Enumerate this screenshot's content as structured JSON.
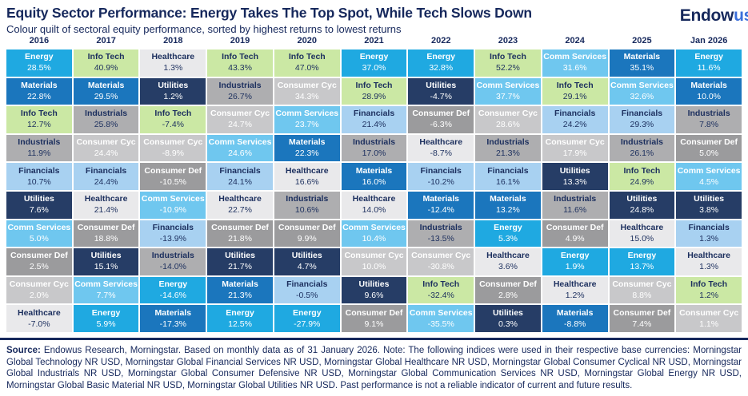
{
  "header": {
    "title": "Equity Sector Performance: Energy Takes The Top Spot, While Tech Slows Down",
    "subtitle": "Colour quilt of sectoral equity performance, sorted by highest returns to lowest returns",
    "logo_part1": "Endow",
    "logo_part2": "us"
  },
  "colors": {
    "navy_text": "#16285C",
    "logo_blue": "#3B6FDB",
    "sectors": {
      "Energy": {
        "bg": "#1FA9E1",
        "text": "#FFFFFF"
      },
      "Materials": {
        "bg": "#1B76BD",
        "text": "#FFFFFF"
      },
      "Info Tech": {
        "bg": "#CBE8A4",
        "text": "#1C2F5E"
      },
      "Industrials": {
        "bg": "#AEAEB0",
        "text": "#1C2F5E"
      },
      "Financials": {
        "bg": "#A8D1F1",
        "text": "#1C2F5E"
      },
      "Utilities": {
        "bg": "#263D66",
        "text": "#FFFFFF"
      },
      "Comm Services": {
        "bg": "#6FC7EF",
        "text": "#FFFFFF"
      },
      "Consumer Def": {
        "bg": "#9B9B9D",
        "text": "#FFFFFF"
      },
      "Consumer Cyc": {
        "bg": "#C8C8CA",
        "text": "#FFFFFF"
      },
      "Healthcare": {
        "bg": "#E9E9EB",
        "text": "#1C2F5E"
      }
    }
  },
  "chart_data": {
    "type": "table",
    "subtype": "colour-quilt-heatmap",
    "title": "Equity Sector Performance: Energy Takes The Top Spot, While Tech Slows Down",
    "columns": [
      "2016",
      "2017",
      "2018",
      "2019",
      "2020",
      "2021",
      "2022",
      "2023",
      "2024",
      "2025",
      "Jan 2026"
    ],
    "columns_data": [
      {
        "label": "2016",
        "ranking": [
          {
            "sector": "Energy",
            "value": "28.5%"
          },
          {
            "sector": "Materials",
            "value": "22.8%"
          },
          {
            "sector": "Info Tech",
            "value": "12.7%"
          },
          {
            "sector": "Industrials",
            "value": "11.9%"
          },
          {
            "sector": "Financials",
            "value": "10.7%"
          },
          {
            "sector": "Utilities",
            "value": "7.6%"
          },
          {
            "sector": "Comm Services",
            "value": "5.0%"
          },
          {
            "sector": "Consumer Def",
            "value": "2.5%"
          },
          {
            "sector": "Consumer Cyc",
            "value": "2.0%"
          },
          {
            "sector": "Healthcare",
            "value": "-7.0%"
          }
        ]
      },
      {
        "label": "2017",
        "ranking": [
          {
            "sector": "Info Tech",
            "value": "40.9%"
          },
          {
            "sector": "Materials",
            "value": "29.5%"
          },
          {
            "sector": "Industrials",
            "value": "25.8%"
          },
          {
            "sector": "Consumer Cyc",
            "value": "24.4%"
          },
          {
            "sector": "Financials",
            "value": "24.4%"
          },
          {
            "sector": "Healthcare",
            "value": "21.4%"
          },
          {
            "sector": "Consumer Def",
            "value": "18.8%"
          },
          {
            "sector": "Utilities",
            "value": "15.1%"
          },
          {
            "sector": "Comm Services",
            "value": "7.7%"
          },
          {
            "sector": "Energy",
            "value": "5.9%"
          }
        ]
      },
      {
        "label": "2018",
        "ranking": [
          {
            "sector": "Healthcare",
            "value": "1.3%"
          },
          {
            "sector": "Utilities",
            "value": "1.2%"
          },
          {
            "sector": "Info Tech",
            "value": "-7.4%"
          },
          {
            "sector": "Consumer Cyc",
            "value": "-8.9%"
          },
          {
            "sector": "Consumer Def",
            "value": "-10.5%"
          },
          {
            "sector": "Comm Services",
            "value": "-10.9%"
          },
          {
            "sector": "Financials",
            "value": "-13.9%"
          },
          {
            "sector": "Industrials",
            "value": "-14.0%"
          },
          {
            "sector": "Energy",
            "value": "-14.6%"
          },
          {
            "sector": "Materials",
            "value": "-17.3%"
          }
        ]
      },
      {
        "label": "2019",
        "ranking": [
          {
            "sector": "Info Tech",
            "value": "43.3%"
          },
          {
            "sector": "Industrials",
            "value": "26.7%"
          },
          {
            "sector": "Consumer Cyc",
            "value": "24.7%"
          },
          {
            "sector": "Comm Services",
            "value": "24.6%"
          },
          {
            "sector": "Financials",
            "value": "24.1%"
          },
          {
            "sector": "Healthcare",
            "value": "22.7%"
          },
          {
            "sector": "Consumer Def",
            "value": "21.8%"
          },
          {
            "sector": "Utilities",
            "value": "21.7%"
          },
          {
            "sector": "Materials",
            "value": "21.3%"
          },
          {
            "sector": "Energy",
            "value": "12.5%"
          }
        ]
      },
      {
        "label": "2020",
        "ranking": [
          {
            "sector": "Info Tech",
            "value": "47.0%"
          },
          {
            "sector": "Consumer Cyc",
            "value": "34.3%"
          },
          {
            "sector": "Comm Services",
            "value": "23.7%"
          },
          {
            "sector": "Materials",
            "value": "22.3%"
          },
          {
            "sector": "Healthcare",
            "value": "16.6%"
          },
          {
            "sector": "Industrials",
            "value": "10.6%"
          },
          {
            "sector": "Consumer Def",
            "value": "9.9%"
          },
          {
            "sector": "Utilities",
            "value": "4.7%"
          },
          {
            "sector": "Financials",
            "value": "-0.5%"
          },
          {
            "sector": "Energy",
            "value": "-27.9%"
          }
        ]
      },
      {
        "label": "2021",
        "ranking": [
          {
            "sector": "Energy",
            "value": "37.0%"
          },
          {
            "sector": "Info Tech",
            "value": "28.9%"
          },
          {
            "sector": "Financials",
            "value": "21.4%"
          },
          {
            "sector": "Industrials",
            "value": "17.0%"
          },
          {
            "sector": "Materials",
            "value": "16.0%"
          },
          {
            "sector": "Healthcare",
            "value": "14.0%"
          },
          {
            "sector": "Comm Services",
            "value": "10.4%"
          },
          {
            "sector": "Consumer Cyc",
            "value": "10.0%"
          },
          {
            "sector": "Utilities",
            "value": "9.6%"
          },
          {
            "sector": "Consumer Def",
            "value": "9.1%"
          }
        ]
      },
      {
        "label": "2022",
        "ranking": [
          {
            "sector": "Energy",
            "value": "32.8%"
          },
          {
            "sector": "Utilities",
            "value": "-4.7%"
          },
          {
            "sector": "Consumer Def",
            "value": "-6.3%"
          },
          {
            "sector": "Healthcare",
            "value": "-8.7%"
          },
          {
            "sector": "Financials",
            "value": "-10.2%"
          },
          {
            "sector": "Materials",
            "value": "-12.4%"
          },
          {
            "sector": "Industrials",
            "value": "-13.5%"
          },
          {
            "sector": "Consumer Cyc",
            "value": "-30.8%"
          },
          {
            "sector": "Info Tech",
            "value": "-32.4%"
          },
          {
            "sector": "Comm Services",
            "value": "-35.5%"
          }
        ]
      },
      {
        "label": "2023",
        "ranking": [
          {
            "sector": "Info Tech",
            "value": "52.2%"
          },
          {
            "sector": "Comm Services",
            "value": "37.7%"
          },
          {
            "sector": "Consumer Cyc",
            "value": "28.6%"
          },
          {
            "sector": "Industrials",
            "value": "21.3%"
          },
          {
            "sector": "Financials",
            "value": "16.1%"
          },
          {
            "sector": "Materials",
            "value": "13.2%"
          },
          {
            "sector": "Energy",
            "value": "5.3%"
          },
          {
            "sector": "Healthcare",
            "value": "3.6%"
          },
          {
            "sector": "Consumer Def",
            "value": "2.8%"
          },
          {
            "sector": "Utilities",
            "value": "0.3%"
          }
        ]
      },
      {
        "label": "2024",
        "ranking": [
          {
            "sector": "Comm Services",
            "value": "31.6%"
          },
          {
            "sector": "Info Tech",
            "value": "29.1%"
          },
          {
            "sector": "Financials",
            "value": "24.2%"
          },
          {
            "sector": "Consumer Cyc",
            "value": "17.9%"
          },
          {
            "sector": "Utilities",
            "value": "13.3%"
          },
          {
            "sector": "Industrials",
            "value": "11.6%"
          },
          {
            "sector": "Consumer Def",
            "value": "4.9%"
          },
          {
            "sector": "Energy",
            "value": "1.9%"
          },
          {
            "sector": "Healthcare",
            "value": "1.2%"
          },
          {
            "sector": "Materials",
            "value": "-8.8%"
          }
        ]
      },
      {
        "label": "2025",
        "ranking": [
          {
            "sector": "Materials",
            "value": "35.1%"
          },
          {
            "sector": "Comm Services",
            "value": "32.6%"
          },
          {
            "sector": "Financials",
            "value": "29.3%"
          },
          {
            "sector": "Industrials",
            "value": "26.1%"
          },
          {
            "sector": "Info Tech",
            "value": "24.9%"
          },
          {
            "sector": "Utilities",
            "value": "24.8%"
          },
          {
            "sector": "Healthcare",
            "value": "15.0%"
          },
          {
            "sector": "Energy",
            "value": "13.7%"
          },
          {
            "sector": "Consumer Cyc",
            "value": "8.8%"
          },
          {
            "sector": "Consumer Def",
            "value": "7.4%"
          }
        ]
      },
      {
        "label": "Jan 2026",
        "ranking": [
          {
            "sector": "Energy",
            "value": "11.6%"
          },
          {
            "sector": "Materials",
            "value": "10.0%"
          },
          {
            "sector": "Industrials",
            "value": "7.8%"
          },
          {
            "sector": "Consumer Def",
            "value": "5.0%"
          },
          {
            "sector": "Comm Services",
            "value": "4.5%"
          },
          {
            "sector": "Utilities",
            "value": "3.8%"
          },
          {
            "sector": "Financials",
            "value": "1.3%"
          },
          {
            "sector": "Healthcare",
            "value": "1.3%"
          },
          {
            "sector": "Info Tech",
            "value": "1.2%"
          },
          {
            "sector": "Consumer Cyc",
            "value": "1.1%"
          }
        ]
      }
    ]
  },
  "footer": {
    "source_label": "Source:",
    "text": " Endowus Research, Morningstar. Based on monthly data as of 31 January 2026. Note: The following indices were used in their respective base currencies: Morningstar Global Technology NR USD, Morningstar Global Financial Services NR USD, Morningstar Global Healthcare NR USD, Morningstar Global Consumer Cyclical NR USD, Morningstar Global Industrials NR USD, Morningstar Global Consumer Defensive NR USD, Morningstar Global Communication Services NR USD, Morningstar Global Energy NR USD, Morningstar Global Basic Material NR USD, Morningstar Global Utilities NR USD. Past performance is not a reliable indicator of current and future results."
  }
}
